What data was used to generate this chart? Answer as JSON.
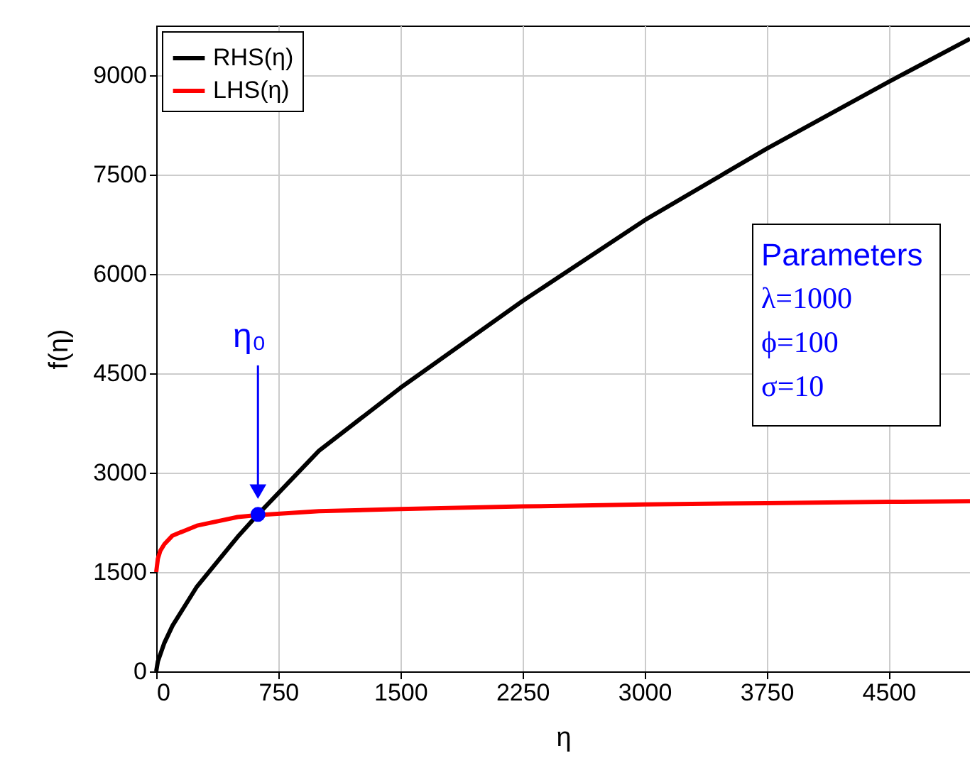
{
  "chart_data": {
    "type": "line",
    "xlabel": "η",
    "ylabel": "f(η)",
    "xlim": [
      0,
      5000
    ],
    "ylim": [
      0,
      9750
    ],
    "xticks": [
      0,
      750,
      1500,
      2250,
      3000,
      3750,
      4500
    ],
    "yticks": [
      0,
      1500,
      3000,
      4500,
      6000,
      7500,
      9000
    ],
    "grid": true,
    "legend": "top left",
    "line_style": "solid",
    "marker": "none",
    "series": [
      {
        "name": "RHS(η)",
        "color": "#000000",
        "x": [
          0,
          10,
          50,
          100,
          250,
          500,
          625,
          1000,
          1500,
          2250,
          3000,
          3750,
          4500,
          5000
        ],
        "values": [
          0,
          150,
          430,
          690,
          1280,
          2030,
          2370,
          3330,
          4280,
          5590,
          6810,
          7890,
          8900,
          9550
        ]
      },
      {
        "name": "LHS(η)",
        "color": "#ff0000",
        "x": [
          0,
          10,
          25,
          50,
          100,
          250,
          500,
          625,
          1000,
          1500,
          2250,
          3000,
          3750,
          4500,
          5000
        ],
        "values": [
          1500,
          1700,
          1820,
          1920,
          2050,
          2200,
          2330,
          2360,
          2420,
          2450,
          2490,
          2520,
          2540,
          2560,
          2570
        ]
      },
      {
        "type": "scatter",
        "color": "#0000ff",
        "marker": "circle",
        "x": [
          625
        ],
        "values": [
          2370
        ]
      }
    ],
    "annotations": [
      "η₀",
      "Parameters",
      "λ=1000",
      "ϕ=100",
      "σ=10"
    ]
  }
}
